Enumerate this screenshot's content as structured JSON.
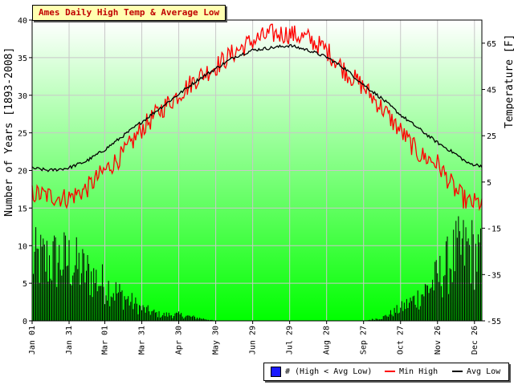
{
  "title": "Ames Daily High Temp & Average Low",
  "chart_data": {
    "type": "bar+line",
    "y_left": {
      "label": "Number of Years [1893-2008]",
      "min": 0,
      "max": 40,
      "ticks": [
        0,
        5,
        10,
        15,
        20,
        25,
        30,
        35,
        40
      ]
    },
    "y_right": {
      "label": "Temperature [F]",
      "min": -55,
      "max": 75,
      "ticks": [
        -55,
        -35,
        -15,
        5,
        25,
        45,
        65
      ]
    },
    "x_ticks": [
      {
        "label": "Jan 01",
        "day": 1
      },
      {
        "label": "Jan 31",
        "day": 31
      },
      {
        "label": "Mar 01",
        "day": 60
      },
      {
        "label": "Mar 31",
        "day": 90
      },
      {
        "label": "Apr 30",
        "day": 120
      },
      {
        "label": "May 30",
        "day": 150
      },
      {
        "label": "Jun 29",
        "day": 180
      },
      {
        "label": "Jul 29",
        "day": 210
      },
      {
        "label": "Aug 28",
        "day": 240
      },
      {
        "label": "Sep 27",
        "day": 270
      },
      {
        "label": "Oct 27",
        "day": 300
      },
      {
        "label": "Nov 26",
        "day": 330
      },
      {
        "label": "Dec 26",
        "day": 360
      }
    ],
    "x_range": [
      1,
      366
    ],
    "grid": true,
    "legend_position": "bottom-right",
    "series": [
      {
        "name": "# (High < Avg Low)",
        "kind": "bar",
        "axis": "left",
        "color": "#000000",
        "points": [
          [
            1,
            10
          ],
          [
            15,
            10
          ],
          [
            30,
            10
          ],
          [
            45,
            8
          ],
          [
            60,
            6
          ],
          [
            75,
            4
          ],
          [
            90,
            2
          ],
          [
            105,
            1
          ],
          [
            120,
            1
          ],
          [
            135,
            0.5
          ],
          [
            150,
            0
          ],
          [
            270,
            0
          ],
          [
            285,
            0.5
          ],
          [
            300,
            2
          ],
          [
            315,
            4
          ],
          [
            330,
            7
          ],
          [
            345,
            11
          ],
          [
            355,
            12
          ],
          [
            366,
            10
          ]
        ]
      },
      {
        "name": "Min High",
        "kind": "line",
        "axis": "right",
        "color": "#ff0000",
        "points": [
          [
            1,
            0
          ],
          [
            15,
            -1
          ],
          [
            30,
            -2
          ],
          [
            45,
            2
          ],
          [
            60,
            10
          ],
          [
            75,
            17
          ],
          [
            90,
            28
          ],
          [
            105,
            36
          ],
          [
            120,
            43
          ],
          [
            135,
            50
          ],
          [
            150,
            55
          ],
          [
            165,
            61
          ],
          [
            180,
            66
          ],
          [
            195,
            69
          ],
          [
            210,
            69
          ],
          [
            225,
            67
          ],
          [
            240,
            62
          ],
          [
            255,
            53
          ],
          [
            270,
            46
          ],
          [
            285,
            37
          ],
          [
            300,
            27
          ],
          [
            315,
            17
          ],
          [
            330,
            13
          ],
          [
            345,
            1
          ],
          [
            355,
            -4
          ],
          [
            366,
            -4
          ]
        ]
      },
      {
        "name": "Avg Low",
        "kind": "line",
        "axis": "right",
        "color": "#000000",
        "points": [
          [
            1,
            11
          ],
          [
            15,
            10
          ],
          [
            30,
            11
          ],
          [
            45,
            14
          ],
          [
            60,
            19
          ],
          [
            75,
            25
          ],
          [
            90,
            31
          ],
          [
            105,
            37
          ],
          [
            120,
            43
          ],
          [
            135,
            49
          ],
          [
            150,
            54
          ],
          [
            165,
            59
          ],
          [
            180,
            62
          ],
          [
            195,
            63
          ],
          [
            210,
            64
          ],
          [
            225,
            62
          ],
          [
            240,
            59
          ],
          [
            255,
            54
          ],
          [
            270,
            47
          ],
          [
            285,
            41
          ],
          [
            300,
            34
          ],
          [
            315,
            28
          ],
          [
            330,
            22
          ],
          [
            345,
            17
          ],
          [
            355,
            13
          ],
          [
            366,
            12
          ]
        ]
      }
    ]
  },
  "legend": {
    "bars": "# (High < Avg Low)",
    "min_high": "Min High",
    "avg_low": "Avg Low"
  }
}
